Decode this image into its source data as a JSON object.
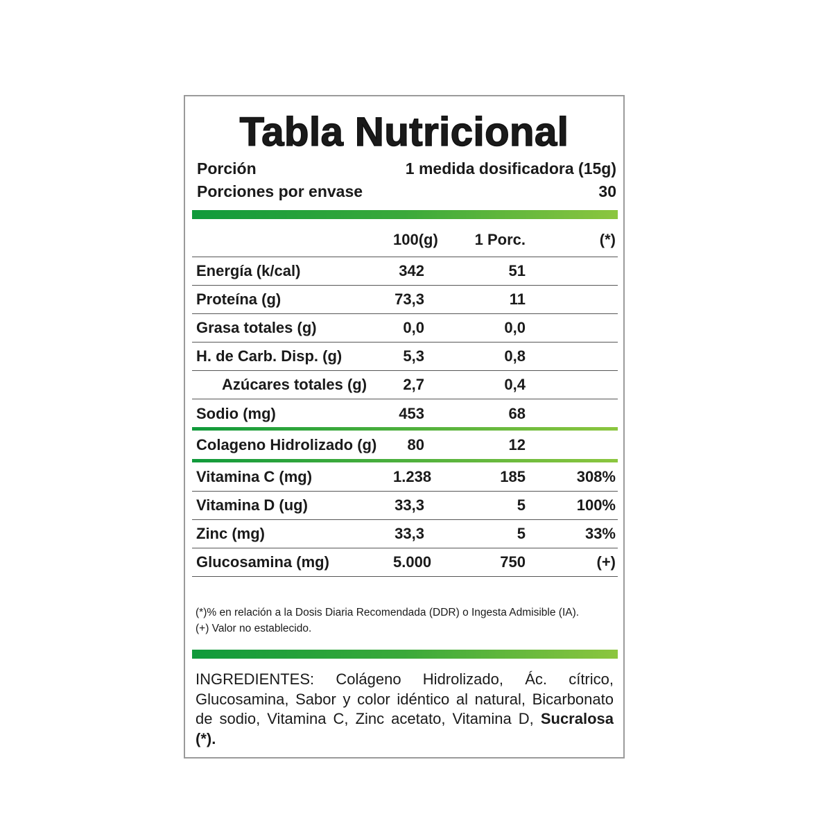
{
  "title": "Tabla Nutricional",
  "serving": {
    "label": "Porción",
    "value": "1 medida dosificadora (15g)"
  },
  "servings_per_container": {
    "label": "Porciones por envase",
    "value": "30"
  },
  "table": {
    "headers": [
      "100(g)",
      "1 Porc.",
      "(*)"
    ],
    "groups": [
      {
        "rows": [
          {
            "label": "Energía (k/cal)",
            "per100": "342",
            "perPortion": "51"
          },
          {
            "label": "Proteína (g)",
            "per100": "73,3",
            "perPortion": "11"
          },
          {
            "label": "Grasa totales (g)",
            "per100": "0,0",
            "perPortion": "0,0"
          },
          {
            "label": "H. de Carb. Disp. (g)",
            "per100": "5,3",
            "perPortion": "0,8"
          },
          {
            "label": "Azúcares totales (g)",
            "per100": "2,7",
            "perPortion": "0,4",
            "indent": true
          },
          {
            "label": "Sodio (mg)",
            "per100": "453",
            "perPortion": "68"
          }
        ]
      },
      {
        "rows": [
          {
            "label": "Colageno Hidrolizado (g)",
            "per100": "80",
            "perPortion": "12"
          }
        ]
      },
      {
        "rows": [
          {
            "label": "Vitamina C (mg)",
            "per100": "1.238",
            "perPortion": "185",
            "dv": "308%"
          },
          {
            "label": "Vitamina D (ug)",
            "per100": "33,3",
            "perPortion": "5",
            "dv": "100%"
          },
          {
            "label": "Zinc (mg)",
            "per100": "33,3",
            "perPortion": "5",
            "dv": "33%"
          },
          {
            "label": "Glucosamina (mg)",
            "per100": "5.000",
            "perPortion": "750",
            "dv": "(+)"
          }
        ]
      }
    ]
  },
  "footnotes": [
    "(*)% en relación a la Dosis Diaria Recomendada (DDR) o Ingesta Admisible (IA).",
    "(+) Valor no establecido."
  ],
  "ingredients": {
    "text": "INGREDIENTES: Colágeno Hidrolizado, Ác. cítrico, Glucosamina, Sabor y color idéntico al natural, Bicarbonato de sodio, Vitamina C, Zinc acetato, Vitamina D,",
    "bold": "Sucralosa (*)."
  }
}
